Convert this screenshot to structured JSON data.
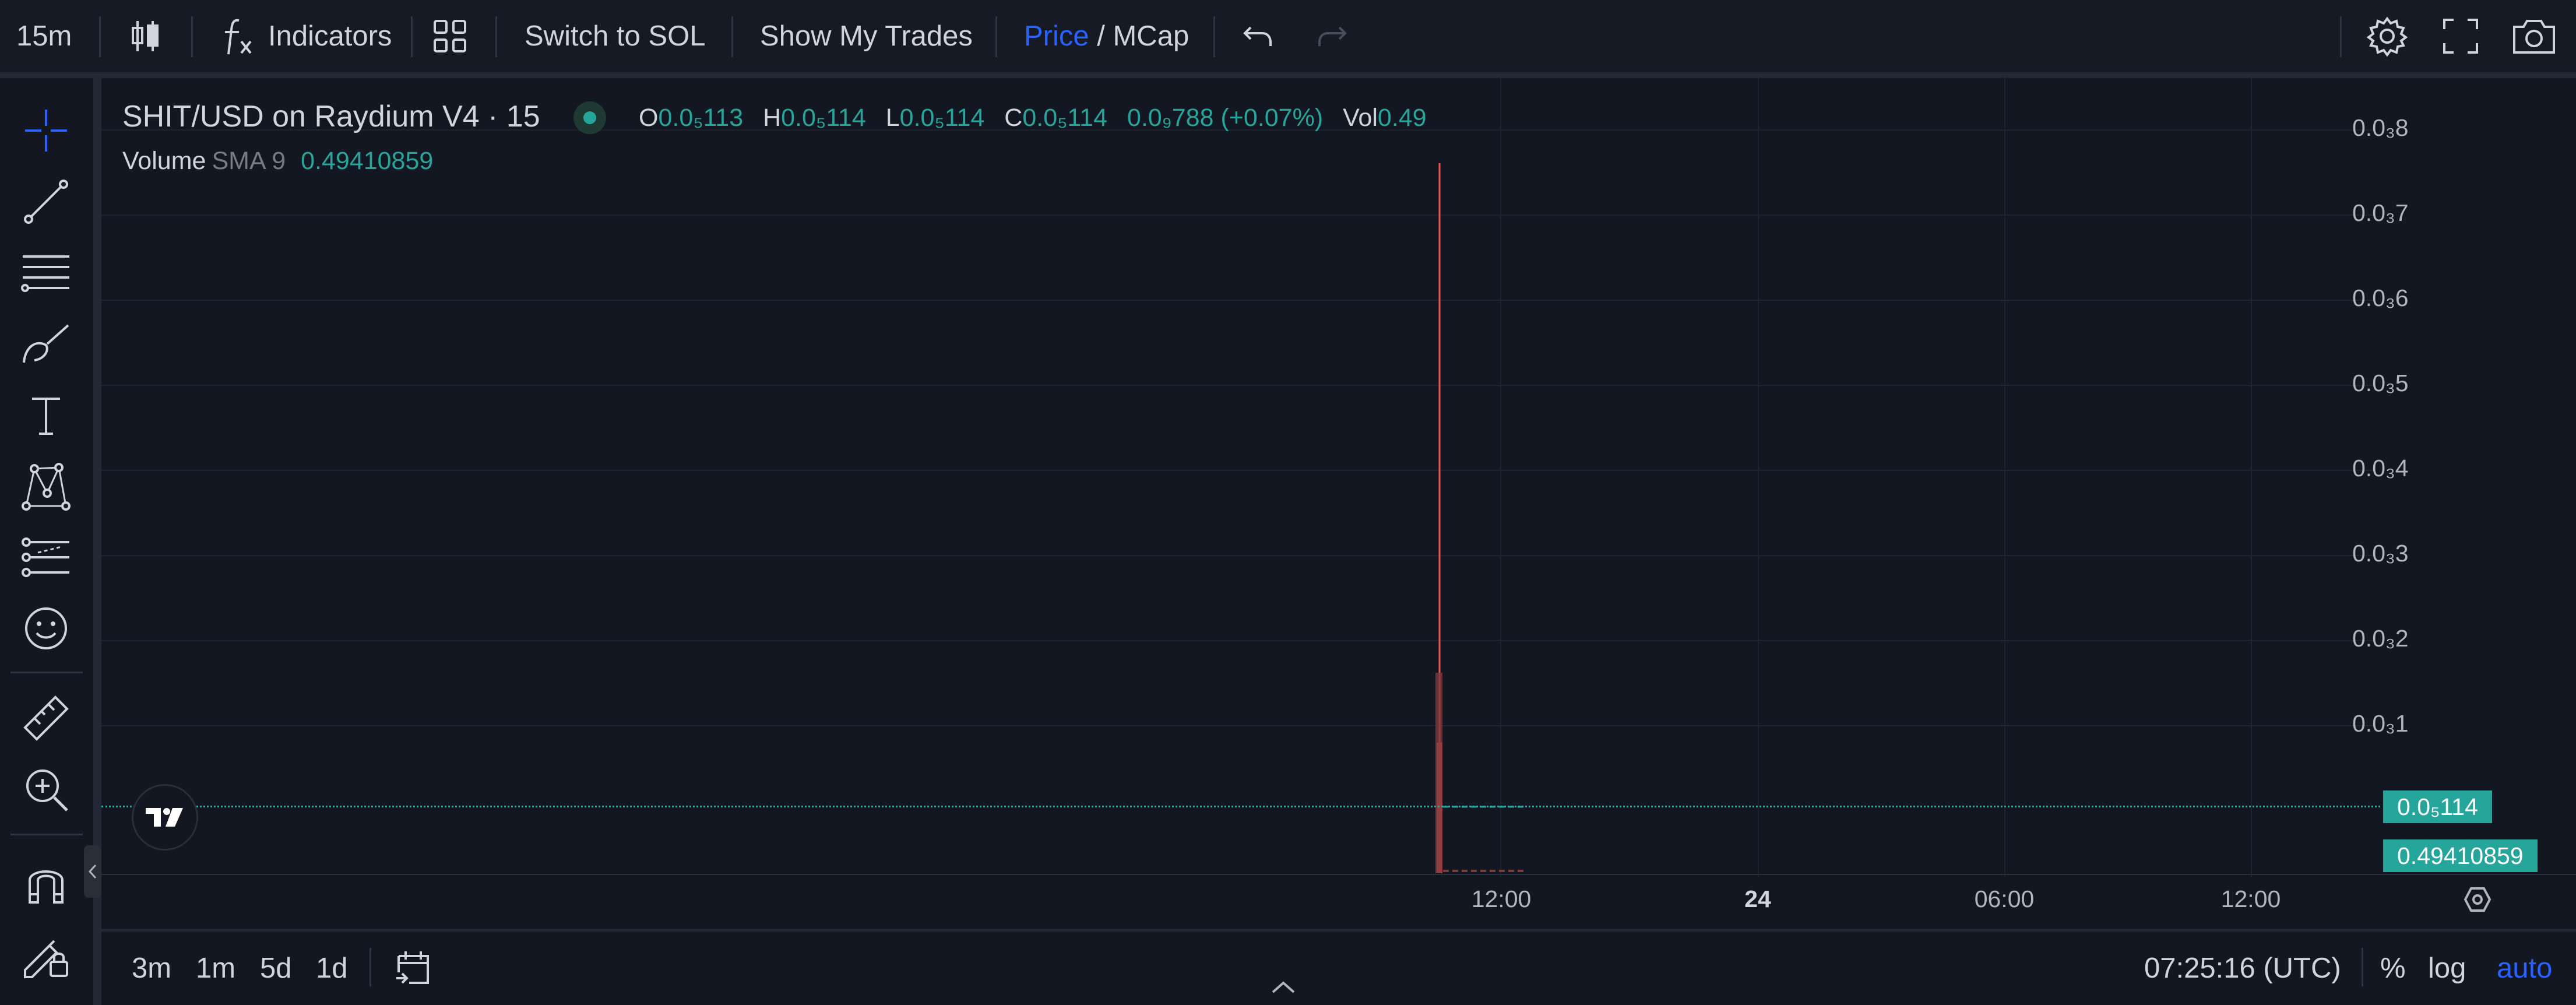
{
  "toolbar": {
    "interval": "15m",
    "indicators_label": "Indicators",
    "switch_label": "Switch to SOL",
    "trades_label": "Show My Trades",
    "price_label": "Price",
    "slash": " / ",
    "mcap_label": "MCap"
  },
  "legend": {
    "title": "SHIT/USD on Raydium V4 · 15",
    "o_key": "O",
    "o_val": "0.0₅113",
    "h_key": "H",
    "h_val": "0.0₅114",
    "l_key": "L",
    "l_val": "0.0₅114",
    "c_key": "C",
    "c_val": "0.0₅114",
    "change": "0.0₉788 (+0.07%)",
    "vol_key": "Vol",
    "vol_val": "0.49",
    "volume_label": "Volume",
    "sma_label": "SMA 9",
    "sma_val": "0.49410859"
  },
  "y_axis": {
    "labels": [
      "0.0₃8",
      "0.0₃7",
      "0.0₃6",
      "0.0₃5",
      "0.0₃4",
      "0.0₃3",
      "0.0₃2",
      "0.0₃1"
    ],
    "price_tag": "0.0₅114",
    "volume_tag": "0.49410859"
  },
  "x_axis": {
    "labels": [
      "12:00",
      "24",
      "06:00",
      "12:00"
    ]
  },
  "bottom": {
    "ranges": [
      "3m",
      "1m",
      "5d",
      "1d"
    ],
    "clock": "07:25:16 (UTC)",
    "percent": "%",
    "log": "log",
    "auto": "auto"
  },
  "colors": {
    "background": "#131722",
    "up": "#26a69a",
    "down": "#ef5350",
    "accent": "#2962ff"
  },
  "icons": [
    "candles-icon",
    "fx-icon",
    "layout-grid-icon",
    "undo-icon",
    "redo-icon",
    "settings-icon",
    "fullscreen-icon",
    "camera-icon",
    "crosshair-icon",
    "trend-line-icon",
    "fib-lines-icon",
    "brush-icon",
    "text-icon",
    "pattern-icon",
    "prediction-icon",
    "emoji-icon",
    "ruler-icon",
    "zoom-in-icon",
    "magnet-icon",
    "lock-drawing-icon",
    "calendar-goto-icon",
    "axis-settings-icon",
    "tradingview-logo"
  ]
}
